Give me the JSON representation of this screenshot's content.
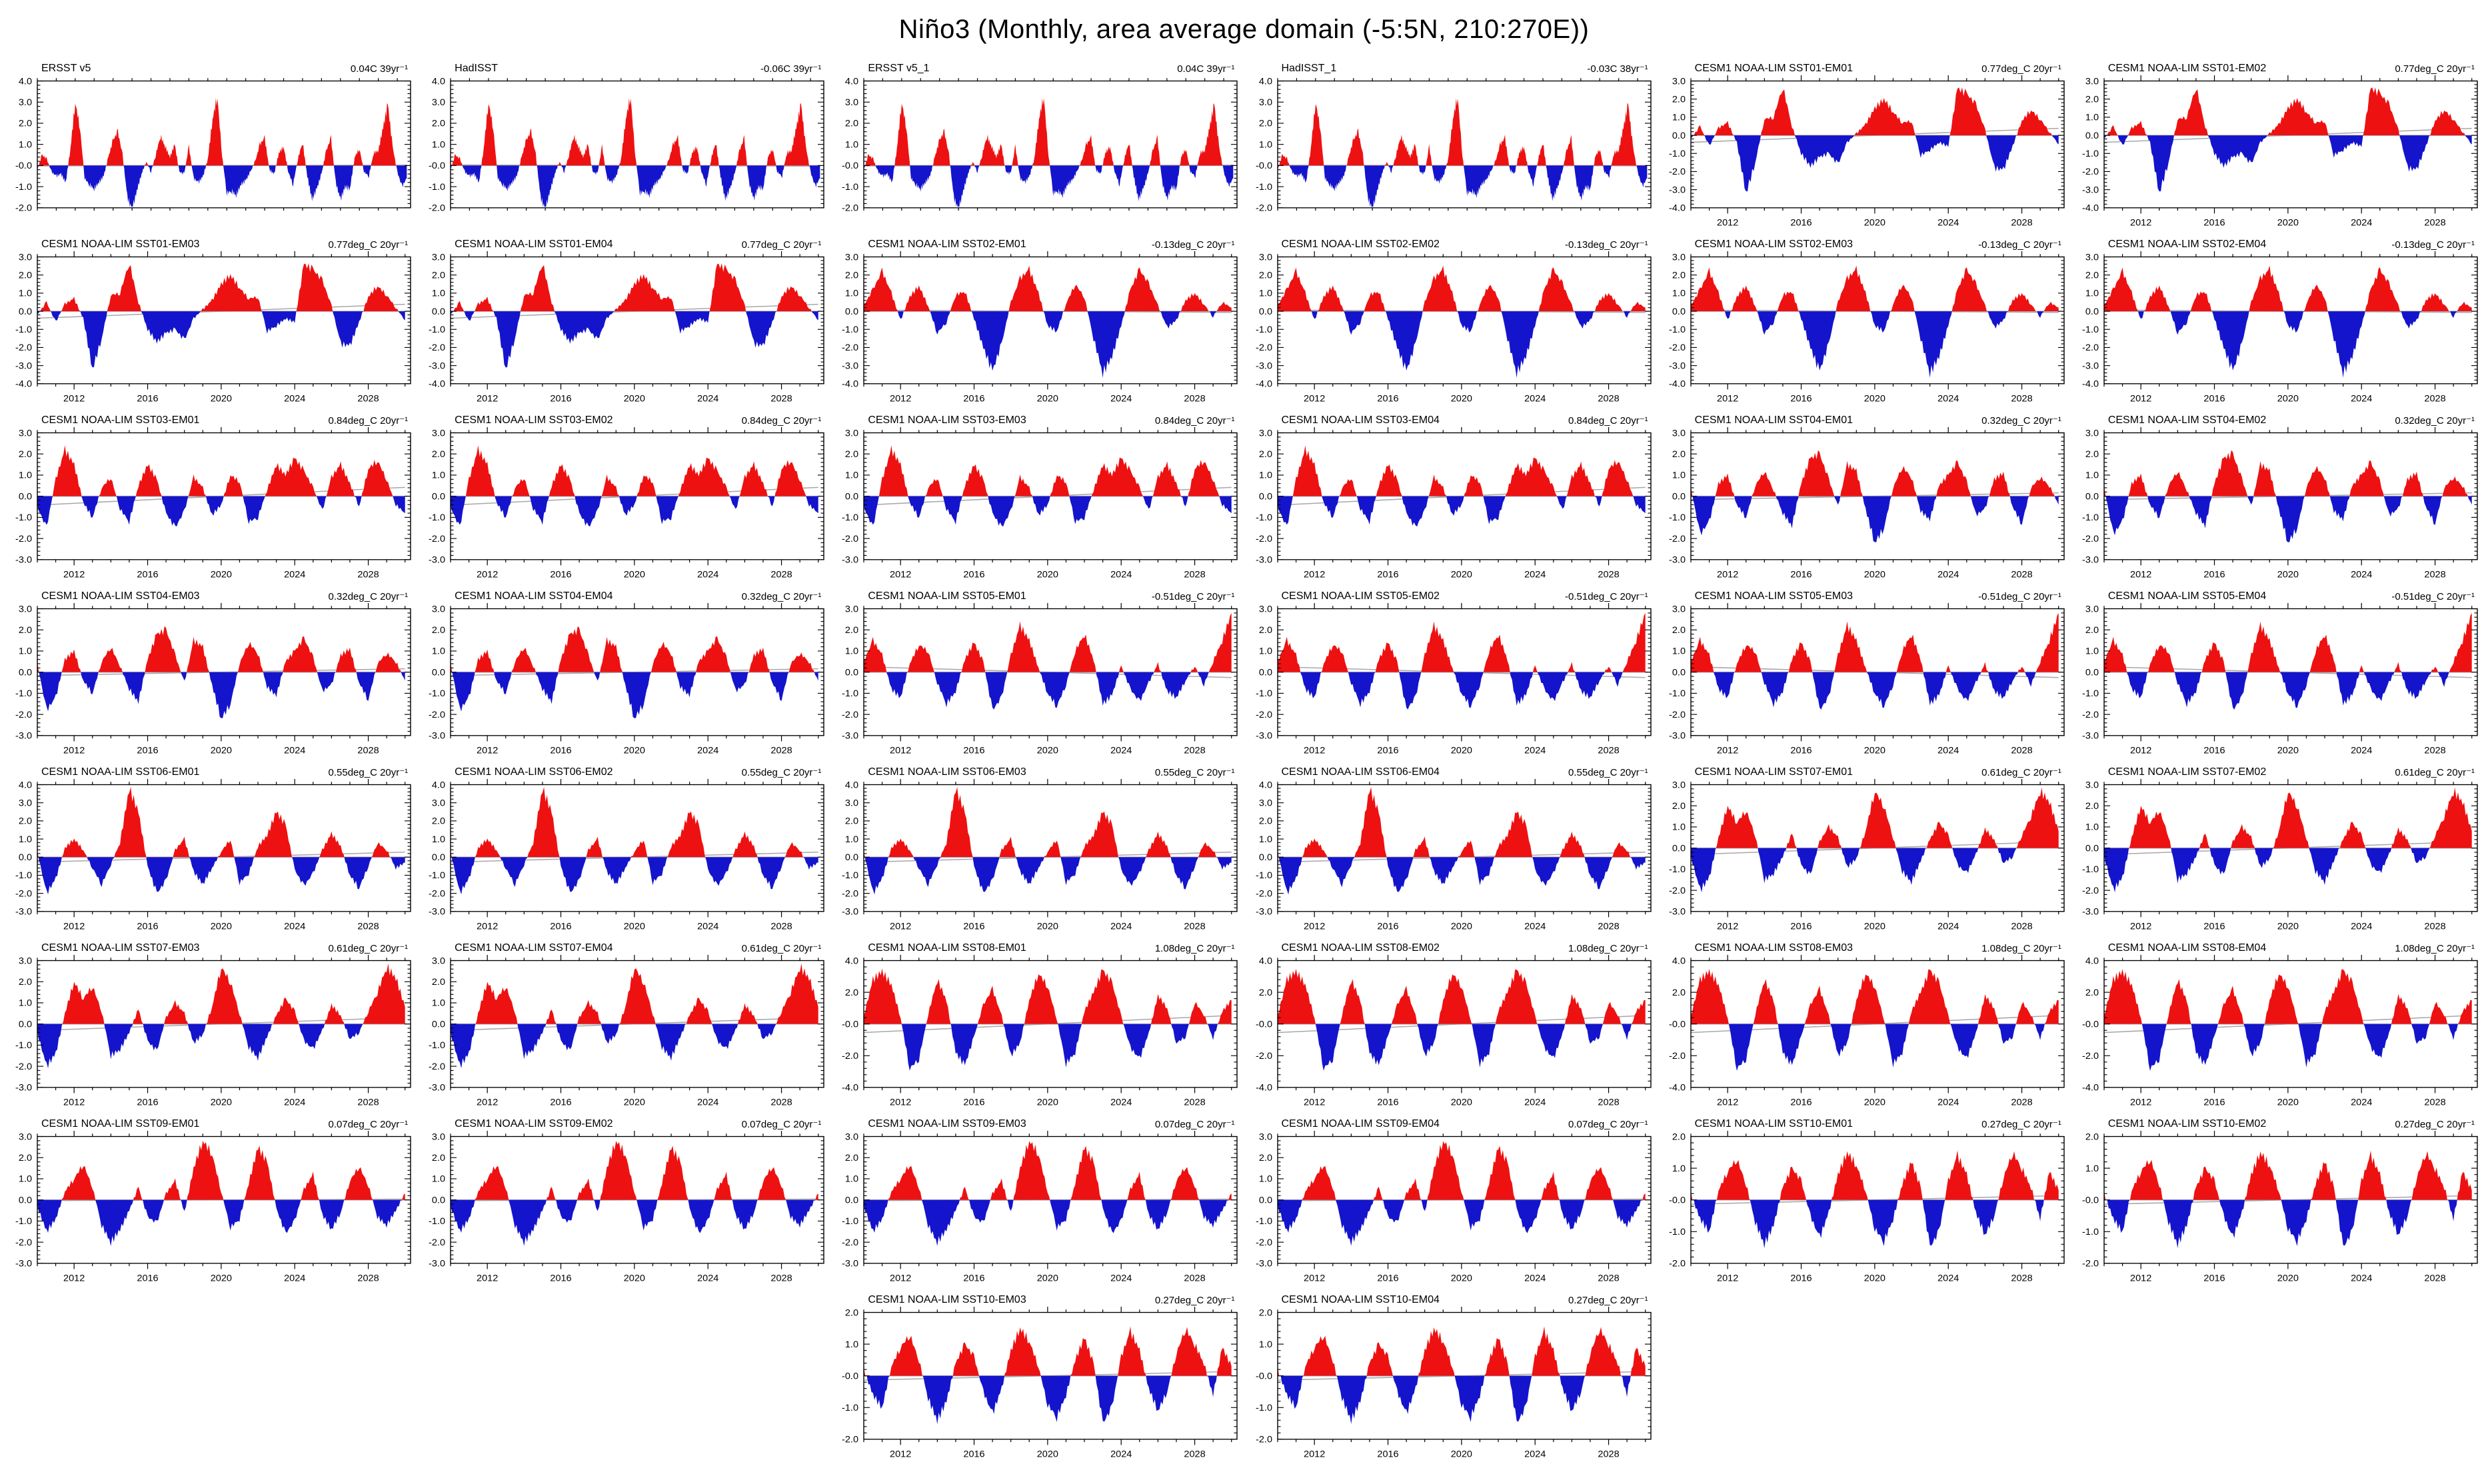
{
  "page_title": "Niño3 (Monthly, area average domain (-5:5N, 210:270E))",
  "colors": {
    "positive_fill": "#ee1111",
    "negative_fill": "#1414cc",
    "zero_line": "#b4b4b4",
    "trend_line": "#a8a8a8",
    "axis": "#000000"
  },
  "chart_data": {
    "type": "area",
    "note": "Monthly Niño3 SST anomaly (deg C) vs time; red above 0, blue below 0; thin gray trend line",
    "x_axes": {
      "obs": {
        "x_start": 1979.0,
        "x_end": 2018.4,
        "x_major": [
          1980,
          1990,
          2000,
          2010
        ],
        "x_minor_step": 2,
        "data_step_years": 0.5
      },
      "model": {
        "x_start": 2010.0,
        "x_end": 2030.3,
        "x_major": [
          2012,
          2016,
          2020,
          2024,
          2028
        ],
        "x_minor_step": 1,
        "data_step_years": 0.5
      }
    },
    "families": {
      "OBS": [
        -0.2,
        0.5,
        0.3,
        -0.3,
        -0.5,
        -0.4,
        -0.8,
        0.8,
        3.0,
        1.8,
        -0.6,
        -0.9,
        -1.1,
        -0.8,
        -0.5,
        0.4,
        1.2,
        1.6,
        0.5,
        -1.5,
        -2.1,
        -1.2,
        -0.4,
        0.2,
        -0.3,
        0.5,
        1.4,
        0.9,
        0.4,
        1.0,
        -0.3,
        -0.4,
        0.9,
        -0.6,
        -0.8,
        -0.5,
        0.3,
        2.2,
        3.3,
        0.5,
        -1.3,
        -1.2,
        -1.4,
        -0.9,
        -0.7,
        -0.3,
        0.2,
        1.0,
        1.3,
        -0.2,
        -0.4,
        0.6,
        0.9,
        -0.3,
        -0.9,
        0.3,
        1.1,
        -0.5,
        -1.6,
        -1.1,
        -0.4,
        0.7,
        1.3,
        -0.8,
        -1.6,
        -1.0,
        -1.1,
        0.4,
        0.8,
        -0.3,
        -0.5,
        0.6,
        0.7,
        1.8,
        2.9,
        0.9,
        -0.3,
        -1.0,
        -0.6
      ],
      "SST01": [
        -0.2,
        0.5,
        -0.6,
        0.4,
        0.7,
        -0.4,
        -3.2,
        -1.5,
        0.9,
        1.0,
        2.7,
        0.5,
        -1.0,
        -1.7,
        -1.2,
        -1.0,
        -1.6,
        -0.4,
        0.1,
        0.6,
        1.5,
        2.0,
        1.3,
        0.7,
        0.8,
        -1.1,
        -0.8,
        -0.4,
        -0.6,
        2.6,
        2.3,
        1.7,
        0.3,
        -1.8,
        -1.9,
        -0.6,
        0.8,
        1.4,
        0.9,
        0.2,
        -0.5
      ],
      "SST02": [
        0.3,
        1.2,
        2.2,
        1.0,
        -0.5,
        0.8,
        1.4,
        0.3,
        -1.2,
        -0.6,
        0.9,
        1.1,
        -0.4,
        -2.0,
        -3.3,
        -1.8,
        0.5,
        1.8,
        2.3,
        1.0,
        -0.8,
        -1.1,
        0.4,
        1.5,
        0.8,
        -1.5,
        -3.4,
        -2.5,
        -0.8,
        1.2,
        2.3,
        1.5,
        0.3,
        -0.9,
        -0.5,
        0.6,
        1.0,
        0.4,
        -0.3,
        0.5,
        0.2
      ],
      "SST03": [
        -0.5,
        -1.5,
        0.8,
        2.2,
        1.5,
        -0.3,
        -1.0,
        0.4,
        0.9,
        -0.6,
        -1.2,
        0.5,
        1.5,
        0.8,
        -0.8,
        -1.5,
        -0.7,
        0.9,
        0.4,
        -0.9,
        -0.4,
        1.0,
        0.7,
        -1.2,
        -1.0,
        0.3,
        1.5,
        1.0,
        1.8,
        1.2,
        0.4,
        -0.7,
        0.9,
        1.5,
        0.6,
        -0.5,
        1.3,
        1.7,
        0.8,
        -0.4,
        -0.8
      ],
      "SST04": [
        0.4,
        -1.8,
        -1.2,
        0.6,
        1.0,
        -0.4,
        -1.0,
        0.5,
        1.2,
        0.3,
        -0.8,
        -1.4,
        0.6,
        1.8,
        2.0,
        0.8,
        -0.5,
        1.5,
        1.2,
        -0.6,
        -2.2,
        -1.5,
        0.4,
        1.4,
        0.9,
        -0.7,
        -1.1,
        0.5,
        1.0,
        1.6,
        0.7,
        -0.9,
        -0.6,
        0.8,
        1.1,
        -0.5,
        -1.3,
        0.4,
        0.9,
        0.5,
        -0.4
      ],
      "SST05": [
        0.5,
        1.5,
        0.8,
        -0.8,
        -1.2,
        0.4,
        1.3,
        1.0,
        -0.5,
        -1.5,
        -0.9,
        0.6,
        1.4,
        0.5,
        -1.8,
        -1.2,
        0.8,
        2.2,
        1.5,
        0.2,
        -1.0,
        -1.6,
        -0.6,
        1.0,
        1.8,
        0.6,
        -1.5,
        -1.1,
        0.3,
        -0.8,
        -1.4,
        -0.5,
        0.4,
        -0.9,
        -1.2,
        -0.4,
        0.3,
        -0.6,
        0.5,
        1.5,
        2.8
      ],
      "SST06": [
        0.3,
        -2.0,
        -1.2,
        0.5,
        1.0,
        0.4,
        -0.6,
        -1.5,
        -0.4,
        0.8,
        3.8,
        2.5,
        -0.5,
        -2.0,
        -1.3,
        0.4,
        1.0,
        -0.8,
        -1.5,
        -0.6,
        0.3,
        1.0,
        -1.4,
        -0.9,
        0.6,
        1.2,
        2.5,
        1.8,
        -0.7,
        -1.6,
        -0.9,
        0.4,
        1.3,
        0.6,
        -1.0,
        -1.7,
        -0.5,
        0.8,
        0.4,
        -0.6,
        -0.3
      ],
      "SST07": [
        -0.4,
        -2.0,
        -1.4,
        0.5,
        2.0,
        1.2,
        1.8,
        0.6,
        -1.5,
        -1.2,
        -0.4,
        0.7,
        -0.8,
        -1.3,
        0.3,
        1.0,
        0.5,
        -0.9,
        -0.5,
        0.8,
        2.7,
        2.0,
        0.5,
        -1.1,
        -1.6,
        -0.6,
        0.4,
        1.2,
        0.6,
        -0.8,
        -1.2,
        -0.3,
        0.9,
        0.4,
        -0.7,
        -0.4,
        0.6,
        1.5,
        2.7,
        2.2,
        0.8
      ],
      "SST08": [
        0.5,
        2.8,
        3.3,
        2.5,
        0.4,
        -2.8,
        -2.2,
        0.6,
        2.8,
        1.5,
        -1.8,
        -2.6,
        -0.8,
        1.2,
        2.2,
        0.5,
        -2.0,
        -1.2,
        1.5,
        3.2,
        2.4,
        0.3,
        -2.5,
        -1.8,
        0.8,
        2.0,
        3.4,
        2.6,
        0.5,
        -1.5,
        -2.2,
        -0.6,
        1.8,
        1.0,
        -1.2,
        -0.8,
        1.4,
        0.6,
        -0.9,
        0.8,
        1.5
      ],
      "SST09": [
        -0.3,
        -1.5,
        -0.9,
        0.4,
        1.0,
        1.7,
        0.6,
        -1.2,
        -2.0,
        -1.4,
        -0.5,
        0.6,
        -0.8,
        -1.1,
        0.3,
        0.9,
        -0.6,
        1.5,
        2.8,
        2.2,
        0.4,
        -1.3,
        -0.9,
        0.8,
        2.5,
        1.8,
        -0.4,
        -1.6,
        -1.0,
        0.5,
        1.2,
        -0.7,
        -1.4,
        -0.6,
        0.9,
        1.6,
        0.7,
        -0.8,
        -1.2,
        -0.5,
        0.3
      ],
      "SST10": [
        0.2,
        -0.6,
        -1.0,
        0.3,
        0.9,
        1.3,
        0.5,
        -0.7,
        -1.4,
        -0.8,
        0.4,
        1.0,
        0.6,
        -0.5,
        -1.2,
        -0.4,
        0.8,
        1.5,
        1.1,
        0.3,
        -0.9,
        -1.3,
        -0.6,
        0.5,
        1.2,
        0.4,
        -1.5,
        -1.0,
        0.6,
        1.4,
        0.8,
        -0.4,
        -1.1,
        -0.5,
        0.7,
        1.5,
        1.0,
        0.4,
        -0.6,
        0.9,
        0.3
      ]
    },
    "charts": [
      {
        "title": "ERSST v5",
        "trend": "0.04C 39yr⁻¹",
        "trend_num": 0.04,
        "family": "OBS",
        "axis": "obs",
        "ymax": 4,
        "ymin": -2,
        "ystep": 1,
        "seed": 1
      },
      {
        "title": "HadISST",
        "trend": "-0.06C 39yr⁻¹",
        "trend_num": -0.06,
        "family": "OBS",
        "axis": "obs",
        "ymax": 4,
        "ymin": -2,
        "ystep": 1,
        "seed": 5
      },
      {
        "title": "ERSST v5_1",
        "trend": "0.04C 39yr⁻¹",
        "trend_num": 0.04,
        "family": "OBS",
        "axis": "obs",
        "ymax": 4,
        "ymin": -2,
        "ystep": 1,
        "seed": 1
      },
      {
        "title": "HadISST_1",
        "trend": "-0.03C 38yr⁻¹",
        "trend_num": -0.03,
        "family": "OBS",
        "axis": "obs",
        "ymax": 4,
        "ymin": -2,
        "ystep": 1,
        "seed": 5
      },
      {
        "title": "CESM1 NOAA-LIM SST01-EM01",
        "trend": "0.77deg_C 20yr⁻¹",
        "trend_num": 0.77,
        "family": "SST01",
        "axis": "model",
        "ymax": 3,
        "ymin": -4,
        "ystep": 1,
        "seed": 11
      },
      {
        "title": "CESM1 NOAA-LIM SST01-EM02",
        "trend": "0.77deg_C 20yr⁻¹",
        "trend_num": 0.77,
        "family": "SST01",
        "axis": "model",
        "ymax": 3,
        "ymin": -4,
        "ystep": 1,
        "seed": 12
      },
      {
        "title": "CESM1 NOAA-LIM SST01-EM03",
        "trend": "0.77deg_C 20yr⁻¹",
        "trend_num": 0.77,
        "family": "SST01",
        "axis": "model",
        "ymax": 3,
        "ymin": -4,
        "ystep": 1,
        "seed": 13
      },
      {
        "title": "CESM1 NOAA-LIM SST01-EM04",
        "trend": "0.77deg_C 20yr⁻¹",
        "trend_num": 0.77,
        "family": "SST01",
        "axis": "model",
        "ymax": 3,
        "ymin": -4,
        "ystep": 1,
        "seed": 14
      },
      {
        "title": "CESM1 NOAA-LIM SST02-EM01",
        "trend": "-0.13deg_C 20yr⁻¹",
        "trend_num": -0.13,
        "family": "SST02",
        "axis": "model",
        "ymax": 3,
        "ymin": -4,
        "ystep": 1,
        "seed": 21
      },
      {
        "title": "CESM1 NOAA-LIM SST02-EM02",
        "trend": "-0.13deg_C 20yr⁻¹",
        "trend_num": -0.13,
        "family": "SST02",
        "axis": "model",
        "ymax": 3,
        "ymin": -4,
        "ystep": 1,
        "seed": 22
      },
      {
        "title": "CESM1 NOAA-LIM SST02-EM03",
        "trend": "-0.13deg_C 20yr⁻¹",
        "trend_num": -0.13,
        "family": "SST02",
        "axis": "model",
        "ymax": 3,
        "ymin": -4,
        "ystep": 1,
        "seed": 23
      },
      {
        "title": "CESM1 NOAA-LIM SST02-EM04",
        "trend": "-0.13deg_C 20yr⁻¹",
        "trend_num": -0.13,
        "family": "SST02",
        "axis": "model",
        "ymax": 3,
        "ymin": -4,
        "ystep": 1,
        "seed": 24
      },
      {
        "title": "CESM1 NOAA-LIM SST03-EM01",
        "trend": "0.84deg_C 20yr⁻¹",
        "trend_num": 0.84,
        "family": "SST03",
        "axis": "model",
        "ymax": 3,
        "ymin": -3,
        "ystep": 1,
        "seed": 31
      },
      {
        "title": "CESM1 NOAA-LIM SST03-EM02",
        "trend": "0.84deg_C 20yr⁻¹",
        "trend_num": 0.84,
        "family": "SST03",
        "axis": "model",
        "ymax": 3,
        "ymin": -3,
        "ystep": 1,
        "seed": 32
      },
      {
        "title": "CESM1 NOAA-LIM SST03-EM03",
        "trend": "0.84deg_C 20yr⁻¹",
        "trend_num": 0.84,
        "family": "SST03",
        "axis": "model",
        "ymax": 3,
        "ymin": -3,
        "ystep": 1,
        "seed": 33
      },
      {
        "title": "CESM1 NOAA-LIM SST03-EM04",
        "trend": "0.84deg_C 20yr⁻¹",
        "trend_num": 0.84,
        "family": "SST03",
        "axis": "model",
        "ymax": 3,
        "ymin": -3,
        "ystep": 1,
        "seed": 34
      },
      {
        "title": "CESM1 NOAA-LIM SST04-EM01",
        "trend": "0.32deg_C 20yr⁻¹",
        "trend_num": 0.32,
        "family": "SST04",
        "axis": "model",
        "ymax": 3,
        "ymin": -3,
        "ystep": 1,
        "seed": 41
      },
      {
        "title": "CESM1 NOAA-LIM SST04-EM02",
        "trend": "0.32deg_C 20yr⁻¹",
        "trend_num": 0.32,
        "family": "SST04",
        "axis": "model",
        "ymax": 3,
        "ymin": -3,
        "ystep": 1,
        "seed": 42
      },
      {
        "title": "CESM1 NOAA-LIM SST04-EM03",
        "trend": "0.32deg_C 20yr⁻¹",
        "trend_num": 0.32,
        "family": "SST04",
        "axis": "model",
        "ymax": 3,
        "ymin": -3,
        "ystep": 1,
        "seed": 43
      },
      {
        "title": "CESM1 NOAA-LIM SST04-EM04",
        "trend": "0.32deg_C 20yr⁻¹",
        "trend_num": 0.32,
        "family": "SST04",
        "axis": "model",
        "ymax": 3,
        "ymin": -3,
        "ystep": 1,
        "seed": 44
      },
      {
        "title": "CESM1 NOAA-LIM SST05-EM01",
        "trend": "-0.51deg_C 20yr⁻¹",
        "trend_num": -0.51,
        "family": "SST05",
        "axis": "model",
        "ymax": 3,
        "ymin": -3,
        "ystep": 1,
        "seed": 51
      },
      {
        "title": "CESM1 NOAA-LIM SST05-EM02",
        "trend": "-0.51deg_C 20yr⁻¹",
        "trend_num": -0.51,
        "family": "SST05",
        "axis": "model",
        "ymax": 3,
        "ymin": -3,
        "ystep": 1,
        "seed": 52
      },
      {
        "title": "CESM1 NOAA-LIM SST05-EM03",
        "trend": "-0.51deg_C 20yr⁻¹",
        "trend_num": -0.51,
        "family": "SST05",
        "axis": "model",
        "ymax": 3,
        "ymin": -3,
        "ystep": 1,
        "seed": 53
      },
      {
        "title": "CESM1 NOAA-LIM SST05-EM04",
        "trend": "-0.51deg_C 20yr⁻¹",
        "trend_num": -0.51,
        "family": "SST05",
        "axis": "model",
        "ymax": 3,
        "ymin": -3,
        "ystep": 1,
        "seed": 54
      },
      {
        "title": "CESM1 NOAA-LIM SST06-EM01",
        "trend": "0.55deg_C 20yr⁻¹",
        "trend_num": 0.55,
        "family": "SST06",
        "axis": "model",
        "ymax": 4,
        "ymin": -3,
        "ystep": 1,
        "seed": 61
      },
      {
        "title": "CESM1 NOAA-LIM SST06-EM02",
        "trend": "0.55deg_C 20yr⁻¹",
        "trend_num": 0.55,
        "family": "SST06",
        "axis": "model",
        "ymax": 4,
        "ymin": -3,
        "ystep": 1,
        "seed": 62
      },
      {
        "title": "CESM1 NOAA-LIM SST06-EM03",
        "trend": "0.55deg_C 20yr⁻¹",
        "trend_num": 0.55,
        "family": "SST06",
        "axis": "model",
        "ymax": 4,
        "ymin": -3,
        "ystep": 1,
        "seed": 63
      },
      {
        "title": "CESM1 NOAA-LIM SST06-EM04",
        "trend": "0.55deg_C 20yr⁻¹",
        "trend_num": 0.55,
        "family": "SST06",
        "axis": "model",
        "ymax": 4,
        "ymin": -3,
        "ystep": 1,
        "seed": 64
      },
      {
        "title": "CESM1 NOAA-LIM SST07-EM01",
        "trend": "0.61deg_C 20yr⁻¹",
        "trend_num": 0.61,
        "family": "SST07",
        "axis": "model",
        "ymax": 3,
        "ymin": -3,
        "ystep": 1,
        "seed": 71
      },
      {
        "title": "CESM1 NOAA-LIM SST07-EM02",
        "trend": "0.61deg_C 20yr⁻¹",
        "trend_num": 0.61,
        "family": "SST07",
        "axis": "model",
        "ymax": 3,
        "ymin": -3,
        "ystep": 1,
        "seed": 72
      },
      {
        "title": "CESM1 NOAA-LIM SST07-EM03",
        "trend": "0.61deg_C 20yr⁻¹",
        "trend_num": 0.61,
        "family": "SST07",
        "axis": "model",
        "ymax": 3,
        "ymin": -3,
        "ystep": 1,
        "seed": 73
      },
      {
        "title": "CESM1 NOAA-LIM SST07-EM04",
        "trend": "0.61deg_C 20yr⁻¹",
        "trend_num": 0.61,
        "family": "SST07",
        "axis": "model",
        "ymax": 3,
        "ymin": -3,
        "ystep": 1,
        "seed": 74
      },
      {
        "title": "CESM1 NOAA-LIM SST08-EM01",
        "trend": "1.08deg_C 20yr⁻¹",
        "trend_num": 1.08,
        "family": "SST08",
        "axis": "model",
        "ymax": 4,
        "ymin": -4,
        "ystep": 2,
        "seed": 81
      },
      {
        "title": "CESM1 NOAA-LIM SST08-EM02",
        "trend": "1.08deg_C 20yr⁻¹",
        "trend_num": 1.08,
        "family": "SST08",
        "axis": "model",
        "ymax": 4,
        "ymin": -4,
        "ystep": 2,
        "seed": 82
      },
      {
        "title": "CESM1 NOAA-LIM SST08-EM03",
        "trend": "1.08deg_C 20yr⁻¹",
        "trend_num": 1.08,
        "family": "SST08",
        "axis": "model",
        "ymax": 4,
        "ymin": -4,
        "ystep": 2,
        "seed": 83
      },
      {
        "title": "CESM1 NOAA-LIM SST08-EM04",
        "trend": "1.08deg_C 20yr⁻¹",
        "trend_num": 1.08,
        "family": "SST08",
        "axis": "model",
        "ymax": 4,
        "ymin": -4,
        "ystep": 2,
        "seed": 84
      },
      {
        "title": "CESM1 NOAA-LIM SST09-EM01",
        "trend": "0.07deg_C 20yr⁻¹",
        "trend_num": 0.07,
        "family": "SST09",
        "axis": "model",
        "ymax": 3,
        "ymin": -3,
        "ystep": 1,
        "seed": 91
      },
      {
        "title": "CESM1 NOAA-LIM SST09-EM02",
        "trend": "0.07deg_C 20yr⁻¹",
        "trend_num": 0.07,
        "family": "SST09",
        "axis": "model",
        "ymax": 3,
        "ymin": -3,
        "ystep": 1,
        "seed": 92
      },
      {
        "title": "CESM1 NOAA-LIM SST09-EM03",
        "trend": "0.07deg_C 20yr⁻¹",
        "trend_num": 0.07,
        "family": "SST09",
        "axis": "model",
        "ymax": 3,
        "ymin": -3,
        "ystep": 1,
        "seed": 93
      },
      {
        "title": "CESM1 NOAA-LIM SST09-EM04",
        "trend": "0.07deg_C 20yr⁻¹",
        "trend_num": 0.07,
        "family": "SST09",
        "axis": "model",
        "ymax": 3,
        "ymin": -3,
        "ystep": 1,
        "seed": 94
      },
      {
        "title": "CESM1 NOAA-LIM SST10-EM01",
        "trend": "0.27deg_C 20yr⁻¹",
        "trend_num": 0.27,
        "family": "SST10",
        "axis": "model",
        "ymax": 2,
        "ymin": -2,
        "ystep": 1,
        "seed": 101
      },
      {
        "title": "CESM1 NOAA-LIM SST10-EM02",
        "trend": "0.27deg_C 20yr⁻¹",
        "trend_num": 0.27,
        "family": "SST10",
        "axis": "model",
        "ymax": 2,
        "ymin": -2,
        "ystep": 1,
        "seed": 102
      },
      {
        "title": "CESM1 NOAA-LIM SST10-EM03",
        "trend": "0.27deg_C 20yr⁻¹",
        "trend_num": 0.27,
        "family": "SST10",
        "axis": "model",
        "ymax": 2,
        "ymin": -2,
        "ystep": 1,
        "seed": 103
      },
      {
        "title": "CESM1 NOAA-LIM SST10-EM04",
        "trend": "0.27deg_C 20yr⁻¹",
        "trend_num": 0.27,
        "family": "SST10",
        "axis": "model",
        "ymax": 2,
        "ymin": -2,
        "ystep": 1,
        "seed": 104
      }
    ]
  }
}
